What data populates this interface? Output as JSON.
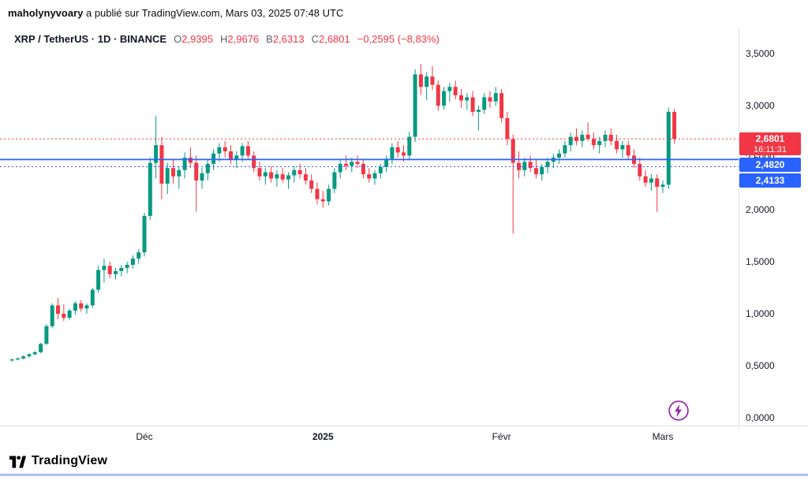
{
  "header": {
    "author": "maholynyvoary",
    "rest": " a publié sur TradingView.com, Mars 03, 2025 07:48 UTC"
  },
  "legend": {
    "title": "XRP / TetherUS · 1D · BINANCE",
    "ohlc": [
      {
        "k": "O",
        "v": "2,9395"
      },
      {
        "k": "H",
        "v": "2,9676"
      },
      {
        "k": "B",
        "v": "2,6313"
      },
      {
        "k": "C",
        "v": "2,6801"
      }
    ],
    "change": "−0,2595 (−8,83%)"
  },
  "badges": {
    "last": {
      "price": "2,6801",
      "countdown": "16:11:31",
      "value": 2.6801
    },
    "lines": [
      {
        "label": "2,4820",
        "value": 2.482
      },
      {
        "label": "2,4133",
        "value": 2.4133
      }
    ]
  },
  "footer": {
    "brand": "TradingView"
  },
  "colors": {
    "up": "#089981",
    "down": "#F23645",
    "blue": "#2962FF",
    "text": "#131722",
    "axis_border": "#e0e3eb",
    "event": "#9C27B0"
  },
  "chart_data": {
    "type": "candlestick",
    "symbol": "XRP / TetherUS",
    "interval": "1D",
    "exchange": "BINANCE",
    "last": {
      "open": 2.9395,
      "high": 2.9676,
      "low": 2.6313,
      "close": 2.6801,
      "change": -0.2595,
      "change_pct": -8.83
    },
    "y_axis": {
      "min": 0.0,
      "max": 3.5,
      "tick_step": 0.5,
      "labels": [
        {
          "label": "3,5000",
          "price": 3.5
        },
        {
          "label": "3,0000",
          "price": 3.0
        },
        {
          "label": "2,5000",
          "price": 2.5
        },
        {
          "label": "2,0000",
          "price": 2.0
        },
        {
          "label": "1,5000",
          "price": 1.5
        },
        {
          "label": "1,0000",
          "price": 1.0
        },
        {
          "label": "0,5000",
          "price": 0.5
        },
        {
          "label": "0,0000",
          "price": 0.0
        }
      ]
    },
    "x_axis": {
      "ticks": [
        {
          "label": "Déc",
          "day": 23,
          "bold": false
        },
        {
          "label": "2025",
          "day": 54,
          "bold": true
        },
        {
          "label": "Févr",
          "day": 85,
          "bold": false
        },
        {
          "label": "Mars",
          "day": 113,
          "bold": false
        }
      ]
    },
    "price_lines": [
      {
        "price": 2.6801,
        "color": "down",
        "style": "dotted"
      },
      {
        "price": 2.482,
        "color": "blue",
        "style": "solid"
      },
      {
        "price": 2.4133,
        "color": "blue",
        "style": "dotted"
      }
    ],
    "candles": [
      [
        0.55,
        0.57,
        0.54,
        0.56
      ],
      [
        0.56,
        0.58,
        0.55,
        0.57
      ],
      [
        0.57,
        0.6,
        0.56,
        0.59
      ],
      [
        0.59,
        0.62,
        0.58,
        0.61
      ],
      [
        0.61,
        0.64,
        0.6,
        0.63
      ],
      [
        0.63,
        0.72,
        0.62,
        0.71
      ],
      [
        0.71,
        0.9,
        0.7,
        0.88
      ],
      [
        0.88,
        1.1,
        0.86,
        1.08
      ],
      [
        1.08,
        1.15,
        0.95,
        1.0
      ],
      [
        1.0,
        1.09,
        0.93,
        0.96
      ],
      [
        0.96,
        1.05,
        0.94,
        1.03
      ],
      [
        1.03,
        1.12,
        0.99,
        1.1
      ],
      [
        1.1,
        1.13,
        1.02,
        1.05
      ],
      [
        1.05,
        1.1,
        1.0,
        1.08
      ],
      [
        1.08,
        1.25,
        1.06,
        1.23
      ],
      [
        1.23,
        1.46,
        1.2,
        1.42
      ],
      [
        1.42,
        1.53,
        1.3,
        1.46
      ],
      [
        1.46,
        1.5,
        1.34,
        1.38
      ],
      [
        1.38,
        1.44,
        1.33,
        1.41
      ],
      [
        1.41,
        1.47,
        1.36,
        1.44
      ],
      [
        1.44,
        1.5,
        1.39,
        1.47
      ],
      [
        1.47,
        1.56,
        1.43,
        1.53
      ],
      [
        1.53,
        1.62,
        1.48,
        1.59
      ],
      [
        1.59,
        1.97,
        1.55,
        1.94
      ],
      [
        1.94,
        2.5,
        1.9,
        2.45
      ],
      [
        2.45,
        2.9,
        2.3,
        2.62
      ],
      [
        2.62,
        2.7,
        2.1,
        2.25
      ],
      [
        2.25,
        2.45,
        2.15,
        2.4
      ],
      [
        2.4,
        2.48,
        2.25,
        2.32
      ],
      [
        2.32,
        2.42,
        2.2,
        2.38
      ],
      [
        2.38,
        2.55,
        2.3,
        2.5
      ],
      [
        2.5,
        2.6,
        2.4,
        2.45
      ],
      [
        2.45,
        2.52,
        1.98,
        2.28
      ],
      [
        2.28,
        2.4,
        2.2,
        2.35
      ],
      [
        2.35,
        2.48,
        2.28,
        2.44
      ],
      [
        2.44,
        2.58,
        2.38,
        2.54
      ],
      [
        2.54,
        2.64,
        2.46,
        2.6
      ],
      [
        2.6,
        2.66,
        2.5,
        2.56
      ],
      [
        2.56,
        2.62,
        2.44,
        2.48
      ],
      [
        2.48,
        2.56,
        2.4,
        2.52
      ],
      [
        2.52,
        2.64,
        2.46,
        2.61
      ],
      [
        2.61,
        2.66,
        2.48,
        2.52
      ],
      [
        2.52,
        2.56,
        2.36,
        2.4
      ],
      [
        2.4,
        2.46,
        2.28,
        2.32
      ],
      [
        2.32,
        2.4,
        2.24,
        2.36
      ],
      [
        2.36,
        2.42,
        2.26,
        2.3
      ],
      [
        2.3,
        2.38,
        2.22,
        2.34
      ],
      [
        2.34,
        2.4,
        2.26,
        2.29
      ],
      [
        2.29,
        2.36,
        2.2,
        2.33
      ],
      [
        2.33,
        2.42,
        2.26,
        2.38
      ],
      [
        2.38,
        2.44,
        2.3,
        2.34
      ],
      [
        2.34,
        2.4,
        2.24,
        2.28
      ],
      [
        2.28,
        2.34,
        2.16,
        2.2
      ],
      [
        2.2,
        2.26,
        2.05,
        2.1
      ],
      [
        2.1,
        2.18,
        2.02,
        2.08
      ],
      [
        2.08,
        2.24,
        2.04,
        2.2
      ],
      [
        2.2,
        2.4,
        2.16,
        2.36
      ],
      [
        2.36,
        2.48,
        2.3,
        2.44
      ],
      [
        2.44,
        2.52,
        2.38,
        2.42
      ],
      [
        2.42,
        2.5,
        2.36,
        2.46
      ],
      [
        2.46,
        2.52,
        2.4,
        2.44
      ],
      [
        2.44,
        2.48,
        2.3,
        2.34
      ],
      [
        2.34,
        2.4,
        2.26,
        2.3
      ],
      [
        2.3,
        2.38,
        2.24,
        2.35
      ],
      [
        2.35,
        2.44,
        2.3,
        2.41
      ],
      [
        2.41,
        2.52,
        2.36,
        2.49
      ],
      [
        2.49,
        2.64,
        2.44,
        2.6
      ],
      [
        2.6,
        2.66,
        2.5,
        2.55
      ],
      [
        2.55,
        2.62,
        2.46,
        2.52
      ],
      [
        2.52,
        2.75,
        2.48,
        2.7
      ],
      [
        2.7,
        3.35,
        2.65,
        3.3
      ],
      [
        3.3,
        3.4,
        3.1,
        3.18
      ],
      [
        3.18,
        3.32,
        3.05,
        3.28
      ],
      [
        3.28,
        3.38,
        3.15,
        3.2
      ],
      [
        3.2,
        3.24,
        2.95,
        3.0
      ],
      [
        3.0,
        3.18,
        2.96,
        3.14
      ],
      [
        3.14,
        3.22,
        3.04,
        3.18
      ],
      [
        3.18,
        3.24,
        3.06,
        3.1
      ],
      [
        3.1,
        3.16,
        2.98,
        3.05
      ],
      [
        3.05,
        3.12,
        2.96,
        3.08
      ],
      [
        3.08,
        3.14,
        2.9,
        2.94
      ],
      [
        2.94,
        3.0,
        2.76,
        2.96
      ],
      [
        2.96,
        3.12,
        2.92,
        3.08
      ],
      [
        3.08,
        3.14,
        2.98,
        3.04
      ],
      [
        3.04,
        3.18,
        3.0,
        3.12
      ],
      [
        3.12,
        3.16,
        2.84,
        2.88
      ],
      [
        2.88,
        2.94,
        2.62,
        2.68
      ],
      [
        2.68,
        2.72,
        1.77,
        2.45
      ],
      [
        2.45,
        2.56,
        2.3,
        2.38
      ],
      [
        2.38,
        2.5,
        2.32,
        2.46
      ],
      [
        2.46,
        2.52,
        2.36,
        2.4
      ],
      [
        2.4,
        2.48,
        2.3,
        2.34
      ],
      [
        2.34,
        2.44,
        2.28,
        2.41
      ],
      [
        2.41,
        2.5,
        2.35,
        2.46
      ],
      [
        2.46,
        2.54,
        2.4,
        2.5
      ],
      [
        2.5,
        2.58,
        2.44,
        2.54
      ],
      [
        2.54,
        2.66,
        2.5,
        2.62
      ],
      [
        2.62,
        2.74,
        2.56,
        2.7
      ],
      [
        2.7,
        2.78,
        2.62,
        2.66
      ],
      [
        2.66,
        2.76,
        2.6,
        2.72
      ],
      [
        2.72,
        2.84,
        2.66,
        2.68
      ],
      [
        2.68,
        2.74,
        2.58,
        2.62
      ],
      [
        2.62,
        2.7,
        2.54,
        2.66
      ],
      [
        2.66,
        2.76,
        2.6,
        2.72
      ],
      [
        2.72,
        2.78,
        2.62,
        2.66
      ],
      [
        2.66,
        2.72,
        2.54,
        2.58
      ],
      [
        2.58,
        2.66,
        2.5,
        2.62
      ],
      [
        2.62,
        2.66,
        2.48,
        2.52
      ],
      [
        2.52,
        2.58,
        2.4,
        2.44
      ],
      [
        2.44,
        2.5,
        2.28,
        2.32
      ],
      [
        2.32,
        2.38,
        2.22,
        2.26
      ],
      [
        2.26,
        2.34,
        2.18,
        2.3
      ],
      [
        2.3,
        2.34,
        1.98,
        2.22
      ],
      [
        2.22,
        2.28,
        2.16,
        2.24
      ],
      [
        2.24,
        2.98,
        2.2,
        2.94
      ],
      [
        2.9395,
        2.9676,
        2.6313,
        2.6801
      ]
    ]
  }
}
